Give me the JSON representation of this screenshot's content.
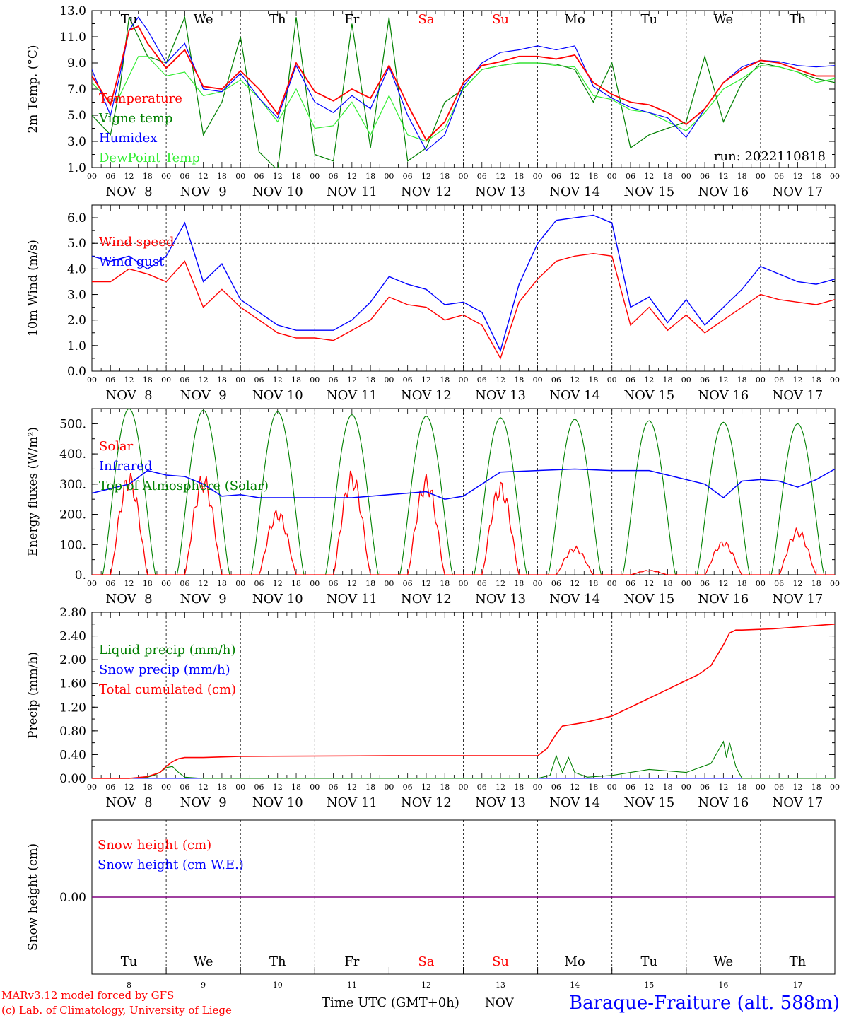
{
  "run_label": "run: 2022110818",
  "footer": {
    "model": "MARv3.12 model forced by GFS",
    "copyright": "(c) Lab. of Climatology, University of Liege",
    "xlabel": "Time UTC (GMT+0h)",
    "month": "NOV",
    "station": "Baraque-Fraiture (alt. 588m)"
  },
  "days": [
    "8",
    "9",
    "10",
    "11",
    "12",
    "13",
    "14",
    "15",
    "16",
    "17"
  ],
  "day_labels": [
    "NOV  8",
    "NOV  9",
    "NOV 10",
    "NOV 11",
    "NOV 12",
    "NOV 13",
    "NOV 14",
    "NOV 15",
    "NOV 16",
    "NOV 17"
  ],
  "weekdays": [
    "Tu",
    "We",
    "Th",
    "Fr",
    "Sa",
    "Su",
    "Mo",
    "Tu",
    "We",
    "Th"
  ],
  "weekday_colors": [
    "#000000",
    "#000000",
    "#000000",
    "#000000",
    "#ff0000",
    "#ff0000",
    "#000000",
    "#000000",
    "#000000",
    "#000000"
  ],
  "hour_ticks": [
    "00",
    "06",
    "12",
    "18"
  ],
  "colors": {
    "red": "#ff0000",
    "green": "#008000",
    "blue": "#0000ff",
    "lightgreen": "#33ee33",
    "purple": "#800080"
  },
  "chart_data": [
    {
      "type": "line",
      "ylabel": "2m Temp. (°C)",
      "ylim": [
        1.0,
        13.0
      ],
      "yticks": [
        "1.0",
        "3.0",
        "5.0",
        "7.0",
        "9.0",
        "11.0",
        "13.0"
      ],
      "x_unit": "hours since 2022-11-08 00 UTC",
      "series": [
        {
          "name": "Temperature",
          "color": "#ff0000",
          "x": [
            0,
            6,
            9,
            12,
            15,
            18,
            24,
            30,
            36,
            42,
            48,
            54,
            60,
            66,
            72,
            78,
            84,
            90,
            96,
            102,
            108,
            114,
            120,
            126,
            132,
            138,
            144,
            150,
            156,
            162,
            168,
            174,
            180,
            186,
            192,
            198,
            204,
            210,
            216,
            222,
            228,
            234,
            240
          ],
          "y": [
            8.0,
            5.8,
            8.5,
            11.5,
            11.8,
            10.5,
            8.6,
            10.0,
            7.2,
            7.0,
            8.4,
            7.0,
            5.1,
            9.0,
            6.8,
            6.1,
            7.0,
            6.3,
            8.8,
            5.8,
            3.1,
            4.5,
            7.5,
            8.8,
            9.1,
            9.5,
            9.5,
            9.3,
            9.6,
            7.5,
            6.6,
            6.0,
            5.8,
            5.2,
            4.3,
            5.5,
            7.5,
            8.5,
            9.2,
            9.0,
            8.5,
            8.0,
            8.0
          ]
        },
        {
          "name": "Vigne temp",
          "color": "#008000",
          "x": [
            0,
            6,
            9,
            12,
            15,
            18,
            24,
            30,
            36,
            42,
            48,
            54,
            60,
            66,
            72,
            78,
            84,
            90,
            96,
            102,
            108,
            114,
            120,
            126,
            132,
            138,
            144,
            150,
            156,
            162,
            168,
            174,
            180,
            186,
            192,
            198,
            204,
            210,
            216,
            222,
            228,
            234,
            240
          ],
          "y": [
            5.0,
            3.5,
            7.0,
            12.5,
            11.0,
            9.5,
            9.0,
            12.5,
            3.5,
            6.0,
            11.0,
            2.2,
            0.8,
            12.5,
            2.0,
            1.5,
            12.0,
            2.5,
            12.5,
            1.5,
            2.5,
            6.0,
            7.0,
            8.5,
            8.8,
            9.0,
            9.0,
            8.9,
            8.5,
            6.0,
            9.0,
            2.5,
            3.5,
            4.0,
            4.5,
            9.5,
            4.5,
            7.5,
            9.0,
            8.7,
            8.3,
            7.8,
            7.5
          ]
        },
        {
          "name": "Humidex",
          "color": "#0000ff",
          "x": [
            0,
            6,
            9,
            12,
            15,
            18,
            24,
            30,
            36,
            42,
            48,
            54,
            60,
            66,
            72,
            78,
            84,
            90,
            96,
            102,
            108,
            114,
            120,
            126,
            132,
            138,
            144,
            150,
            156,
            162,
            168,
            174,
            180,
            186,
            192,
            198,
            204,
            210,
            216,
            222,
            228,
            234,
            240
          ],
          "y": [
            8.5,
            5.0,
            8.0,
            11.5,
            12.5,
            11.5,
            9.0,
            10.5,
            7.0,
            6.8,
            8.2,
            6.3,
            4.8,
            8.8,
            6.0,
            5.2,
            6.5,
            5.5,
            8.7,
            5.0,
            2.3,
            3.5,
            7.2,
            9.0,
            9.8,
            10.0,
            10.3,
            10.0,
            10.3,
            7.2,
            6.3,
            5.6,
            5.2,
            4.8,
            3.3,
            5.5,
            7.5,
            8.7,
            9.2,
            9.1,
            8.8,
            8.7,
            8.8
          ]
        },
        {
          "name": "DewPoint Temp",
          "color": "#33ee33",
          "x": [
            0,
            6,
            9,
            12,
            15,
            18,
            24,
            30,
            36,
            42,
            48,
            54,
            60,
            66,
            72,
            78,
            84,
            90,
            96,
            102,
            108,
            114,
            120,
            126,
            132,
            138,
            144,
            150,
            156,
            162,
            168,
            174,
            180,
            186,
            192,
            198,
            204,
            210,
            216,
            222,
            228,
            234,
            240
          ],
          "y": [
            7.5,
            6.0,
            6.5,
            8.0,
            9.5,
            9.5,
            8.0,
            8.3,
            6.5,
            6.8,
            7.7,
            6.3,
            4.5,
            7.0,
            4.0,
            4.2,
            6.0,
            3.5,
            6.5,
            3.5,
            3.0,
            4.0,
            7.0,
            8.5,
            8.8,
            9.0,
            9.0,
            8.8,
            8.7,
            6.5,
            6.2,
            5.4,
            5.2,
            4.5,
            3.8,
            5.2,
            7.0,
            7.8,
            8.8,
            8.7,
            8.3,
            7.5,
            7.8
          ]
        }
      ]
    },
    {
      "type": "line",
      "ylabel": "10m Wind (m/s)",
      "ylim": [
        0.0,
        6.5
      ],
      "yticks": [
        "0.0",
        "1.0",
        "2.0",
        "3.0",
        "4.0",
        "5.0",
        "6.0"
      ],
      "series": [
        {
          "name": "Wind speed",
          "color": "#ff0000",
          "x": [
            0,
            6,
            12,
            18,
            24,
            30,
            36,
            42,
            48,
            54,
            60,
            66,
            72,
            78,
            84,
            90,
            96,
            102,
            108,
            114,
            120,
            126,
            132,
            138,
            144,
            150,
            156,
            162,
            168,
            174,
            180,
            186,
            192,
            198,
            204,
            210,
            216,
            222,
            228,
            234,
            240
          ],
          "y": [
            3.5,
            3.5,
            4.0,
            3.8,
            3.5,
            4.3,
            2.5,
            3.2,
            2.5,
            2.0,
            1.5,
            1.3,
            1.3,
            1.2,
            1.6,
            2.0,
            2.9,
            2.6,
            2.5,
            2.0,
            2.2,
            1.8,
            0.5,
            2.7,
            3.6,
            4.3,
            4.5,
            4.6,
            4.5,
            1.8,
            2.5,
            1.6,
            2.2,
            1.5,
            2.0,
            2.5,
            3.0,
            2.8,
            2.7,
            2.6,
            2.8
          ]
        },
        {
          "name": "Wind gust",
          "color": "#0000ff",
          "x": [
            0,
            6,
            12,
            18,
            24,
            30,
            36,
            42,
            48,
            54,
            60,
            66,
            72,
            78,
            84,
            90,
            96,
            102,
            108,
            114,
            120,
            126,
            132,
            138,
            144,
            150,
            156,
            162,
            168,
            174,
            180,
            186,
            192,
            198,
            204,
            210,
            216,
            222,
            228,
            234,
            240
          ],
          "y": [
            4.5,
            4.3,
            4.5,
            4.0,
            4.5,
            5.8,
            3.5,
            4.2,
            2.8,
            2.3,
            1.8,
            1.6,
            1.6,
            1.6,
            2.0,
            2.7,
            3.7,
            3.4,
            3.2,
            2.6,
            2.7,
            2.3,
            0.8,
            3.4,
            5.0,
            5.9,
            6.0,
            6.1,
            5.8,
            2.5,
            2.9,
            1.9,
            2.8,
            1.8,
            2.5,
            3.2,
            4.1,
            3.8,
            3.5,
            3.4,
            3.6
          ]
        }
      ]
    },
    {
      "type": "line",
      "ylabel": "Energy fluxes (W/m²)",
      "ylim": [
        0,
        550
      ],
      "yticks": [
        "0.",
        "100.",
        "200.",
        "300.",
        "400.",
        "500."
      ],
      "series": [
        {
          "name": "Solar",
          "color": "#ff0000",
          "peaks": [
            345,
            340,
            220,
            350,
            335,
            315,
            95,
            15,
            115,
            155
          ]
        },
        {
          "name": "Infrared",
          "color": "#0000ff",
          "x": [
            0,
            12,
            18,
            24,
            30,
            36,
            42,
            48,
            54,
            60,
            72,
            84,
            96,
            108,
            114,
            120,
            126,
            132,
            144,
            156,
            168,
            174,
            180,
            186,
            198,
            204,
            210,
            216,
            222,
            228,
            234,
            240
          ],
          "y": [
            270,
            300,
            345,
            330,
            325,
            300,
            260,
            265,
            255,
            255,
            255,
            255,
            265,
            275,
            250,
            260,
            300,
            340,
            345,
            350,
            345,
            345,
            345,
            330,
            300,
            255,
            310,
            315,
            310,
            290,
            315,
            350
          ]
        },
        {
          "name": "Top of Atmosphere (Solar)",
          "color": "#008000",
          "peaks": [
            550,
            545,
            540,
            530,
            525,
            520,
            515,
            510,
            505,
            500
          ]
        }
      ]
    },
    {
      "type": "line",
      "ylabel": "Precip (mm/h)",
      "ylim": [
        0.0,
        2.8
      ],
      "yticks": [
        "0.00",
        "0.40",
        "0.80",
        "1.20",
        "1.60",
        "2.00",
        "2.40",
        "2.80"
      ],
      "series": [
        {
          "name": "Liquid precip (mm/h)",
          "color": "#008000",
          "x": [
            0,
            12,
            18,
            20,
            22,
            24,
            26,
            28,
            30,
            36,
            48,
            144,
            148,
            150,
            152,
            154,
            156,
            160,
            168,
            180,
            192,
            200,
            204,
            205,
            206,
            208,
            210,
            220,
            240
          ],
          "y": [
            0,
            0,
            0.02,
            0.05,
            0.1,
            0.18,
            0.2,
            0.1,
            0.02,
            0,
            0,
            0,
            0.05,
            0.38,
            0.1,
            0.35,
            0.1,
            0.02,
            0.05,
            0.15,
            0.1,
            0.25,
            0.62,
            0.35,
            0.6,
            0.2,
            0,
            0,
            0
          ]
        },
        {
          "name": "Snow precip (mm/h)",
          "color": "#0000ff",
          "x": [
            0,
            240
          ],
          "y": [
            0,
            0
          ]
        },
        {
          "name": "Total cumulated (cm)",
          "color": "#ff0000",
          "x": [
            0,
            12,
            18,
            22,
            24,
            26,
            28,
            30,
            36,
            48,
            96,
            144,
            147,
            150,
            152,
            160,
            168,
            176,
            184,
            192,
            196,
            200,
            204,
            206,
            208,
            210,
            220,
            240
          ],
          "y": [
            0,
            0,
            0.03,
            0.1,
            0.2,
            0.28,
            0.33,
            0.35,
            0.35,
            0.37,
            0.38,
            0.38,
            0.5,
            0.75,
            0.88,
            0.95,
            1.05,
            1.25,
            1.45,
            1.65,
            1.75,
            1.9,
            2.25,
            2.45,
            2.5,
            2.5,
            2.52,
            2.6
          ]
        }
      ]
    },
    {
      "type": "line",
      "ylabel": "Snow height (cm)",
      "yticks": [
        "0.00"
      ],
      "series": [
        {
          "name": "Snow height (cm)",
          "color": "#ff0000",
          "x": [
            0,
            240
          ],
          "y": [
            0,
            0
          ]
        },
        {
          "name": "Snow height (cm W.E.)",
          "color": "#0000ff",
          "x": [
            0,
            240
          ],
          "y": [
            0,
            0
          ]
        }
      ]
    }
  ]
}
